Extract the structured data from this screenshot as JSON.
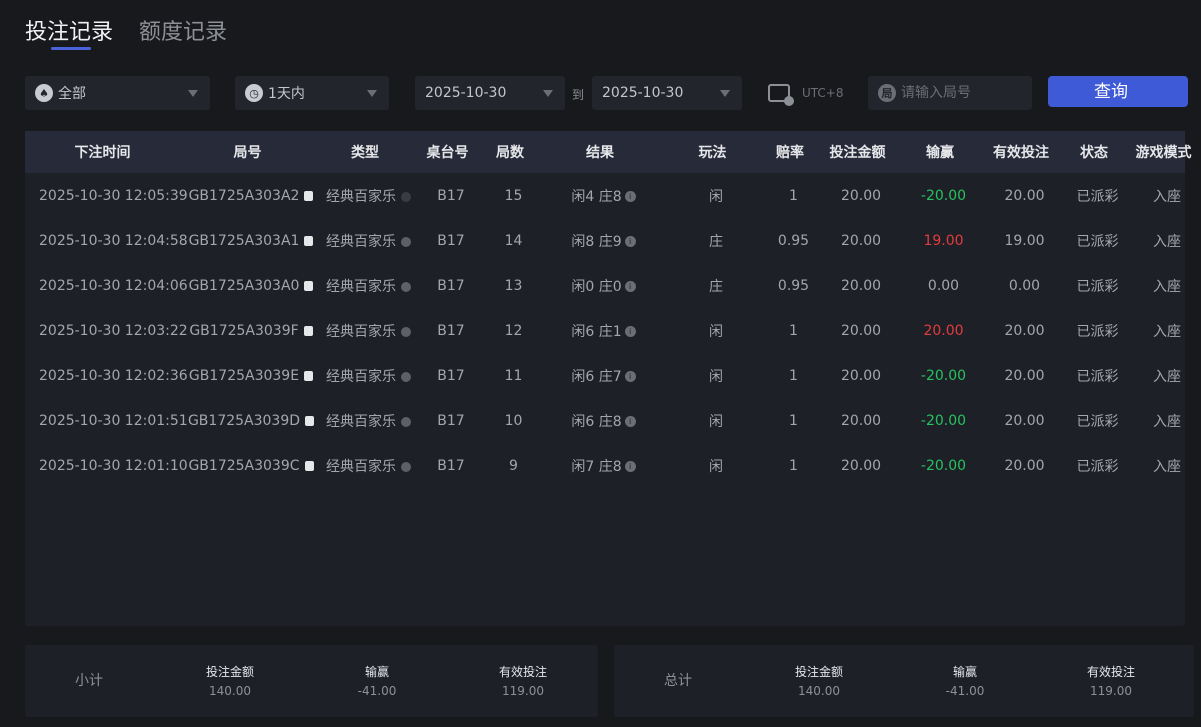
{
  "tabs": [
    {
      "label": "投注记录",
      "active": true
    },
    {
      "label": "额度记录",
      "active": false
    }
  ],
  "filters": {
    "game_type": "全部",
    "time_range": "1天内",
    "date_from": "2025-10-30",
    "to_label": "到",
    "date_to": "2025-10-30",
    "timezone": "UTC+8",
    "round_placeholder": "请输入局号",
    "round_icon": "局",
    "query_button": "查询"
  },
  "colors": {
    "accent": "#3f5ad6",
    "loss": "#27c25e",
    "win": "#e23b3b"
  },
  "table": {
    "headers": [
      "下注时间",
      "局号",
      "类型",
      "桌台号",
      "局数",
      "结果",
      "玩法",
      "赔率",
      "投注金额",
      "输赢",
      "有效投注",
      "状态",
      "游戏模式"
    ],
    "rows": [
      {
        "time": "2025-10-30 12:05:39",
        "round": "GB1725A303A2",
        "type": "经典百家乐",
        "table": "B17",
        "num": "15",
        "result": "闲4 庄8",
        "play": "闲",
        "odds": "1",
        "amount": "20.00",
        "winloss": "-20.00",
        "sign": "neg",
        "valid": "20.00",
        "status": "已派彩",
        "mode": "入座"
      },
      {
        "time": "2025-10-30 12:04:58",
        "round": "GB1725A303A1",
        "type": "经典百家乐",
        "table": "B17",
        "num": "14",
        "result": "闲8 庄9",
        "play": "庄",
        "odds": "0.95",
        "amount": "20.00",
        "winloss": "19.00",
        "sign": "pos",
        "valid": "19.00",
        "status": "已派彩",
        "mode": "入座"
      },
      {
        "time": "2025-10-30 12:04:06",
        "round": "GB1725A303A0",
        "type": "经典百家乐",
        "table": "B17",
        "num": "13",
        "result": "闲0 庄0",
        "play": "庄",
        "odds": "0.95",
        "amount": "20.00",
        "winloss": "0.00",
        "sign": "zero",
        "valid": "0.00",
        "status": "已派彩",
        "mode": "入座"
      },
      {
        "time": "2025-10-30 12:03:22",
        "round": "GB1725A3039F",
        "type": "经典百家乐",
        "table": "B17",
        "num": "12",
        "result": "闲6 庄1",
        "play": "闲",
        "odds": "1",
        "amount": "20.00",
        "winloss": "20.00",
        "sign": "pos",
        "valid": "20.00",
        "status": "已派彩",
        "mode": "入座"
      },
      {
        "time": "2025-10-30 12:02:36",
        "round": "GB1725A3039E",
        "type": "经典百家乐",
        "table": "B17",
        "num": "11",
        "result": "闲6 庄7",
        "play": "闲",
        "odds": "1",
        "amount": "20.00",
        "winloss": "-20.00",
        "sign": "neg",
        "valid": "20.00",
        "status": "已派彩",
        "mode": "入座"
      },
      {
        "time": "2025-10-30 12:01:51",
        "round": "GB1725A3039D",
        "type": "经典百家乐",
        "table": "B17",
        "num": "10",
        "result": "闲6 庄8",
        "play": "闲",
        "odds": "1",
        "amount": "20.00",
        "winloss": "-20.00",
        "sign": "neg",
        "valid": "20.00",
        "status": "已派彩",
        "mode": "入座"
      },
      {
        "time": "2025-10-30 12:01:10",
        "round": "GB1725A3039C",
        "type": "经典百家乐",
        "table": "B17",
        "num": "9",
        "result": "闲7 庄8",
        "play": "闲",
        "odds": "1",
        "amount": "20.00",
        "winloss": "-20.00",
        "sign": "neg",
        "valid": "20.00",
        "status": "已派彩",
        "mode": "入座"
      }
    ]
  },
  "subtotal": {
    "label": "小计",
    "amount_label": "投注金额",
    "amount": "140.00",
    "winloss_label": "输赢",
    "winloss": "-41.00",
    "valid_label": "有效投注",
    "valid": "119.00"
  },
  "total": {
    "label": "总计",
    "amount_label": "投注金额",
    "amount": "140.00",
    "winloss_label": "输赢",
    "winloss": "-41.00",
    "valid_label": "有效投注",
    "valid": "119.00"
  }
}
